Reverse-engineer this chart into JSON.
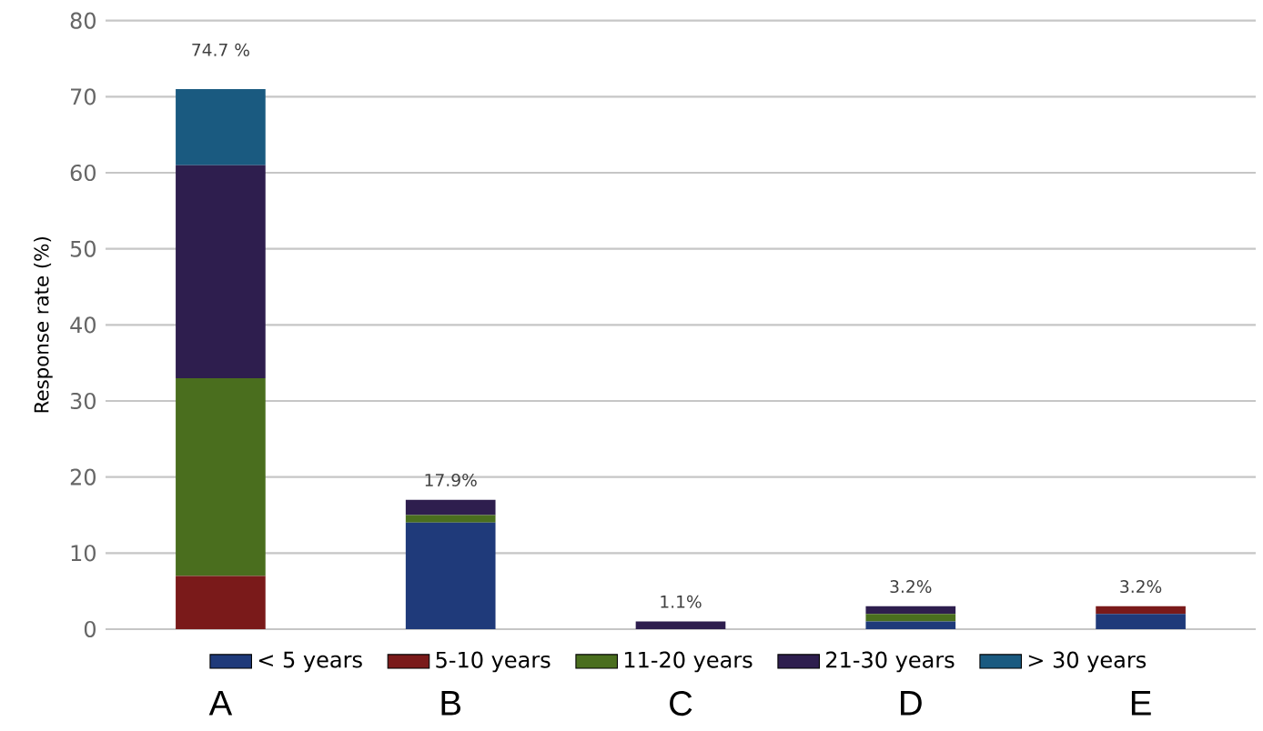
{
  "chart_data": {
    "type": "bar",
    "stacked": true,
    "ylabel": "Response rate (%)",
    "categories": [
      "A",
      "B",
      "C",
      "D",
      "E"
    ],
    "series": [
      {
        "name": "< 5 years",
        "color": "#1f3a7a",
        "values": [
          0,
          14,
          0,
          1,
          2
        ]
      },
      {
        "name": "5-10 years",
        "color": "#7a1a1a",
        "values": [
          7,
          0,
          0,
          0,
          1
        ]
      },
      {
        "name": "11-20 years",
        "color": "#4a6e1e",
        "values": [
          26,
          1,
          0,
          1,
          0
        ]
      },
      {
        "name": "21-30 years",
        "color": "#2e1e4e",
        "values": [
          28,
          2,
          1,
          1,
          0
        ]
      },
      {
        "name": "> 30 years",
        "color": "#1a5a80",
        "values": [
          10,
          0,
          0,
          0,
          0
        ]
      }
    ],
    "annotations": [
      {
        "text": "74.7 %",
        "x": "A",
        "y": 71
      },
      {
        "text": "17.9%",
        "x": "B",
        "y": 17
      },
      {
        "text": "1.1%",
        "x": "C",
        "y": 1
      },
      {
        "text": "3.2%",
        "x": "D",
        "y": 3
      },
      {
        "text": "3.2%",
        "x": "E",
        "y": 3
      }
    ],
    "ylim": [
      0,
      80
    ],
    "yticks": [
      0,
      10,
      20,
      30,
      40,
      50,
      60,
      70,
      80
    ],
    "grid": "y",
    "legend": "bottom"
  }
}
